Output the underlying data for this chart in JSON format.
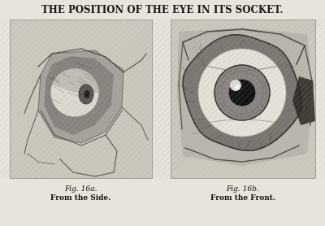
{
  "title": "THE POSITION OF THE EYE IN ITS SOCKET.",
  "fig_a_label": "Fig. 16a.",
  "fig_a_sublabel": "From the Side.",
  "fig_b_label": "Fig. 16b.",
  "fig_b_sublabel": "From the Front.",
  "bg_color": "#e8e4dc",
  "panel_bg_left": "#ccc8be",
  "panel_bg_right": "#ccc8be",
  "title_fontsize": 8.5,
  "caption_fontsize": 6.5,
  "title_color": "#1a1a1a",
  "text_color": "#111111"
}
